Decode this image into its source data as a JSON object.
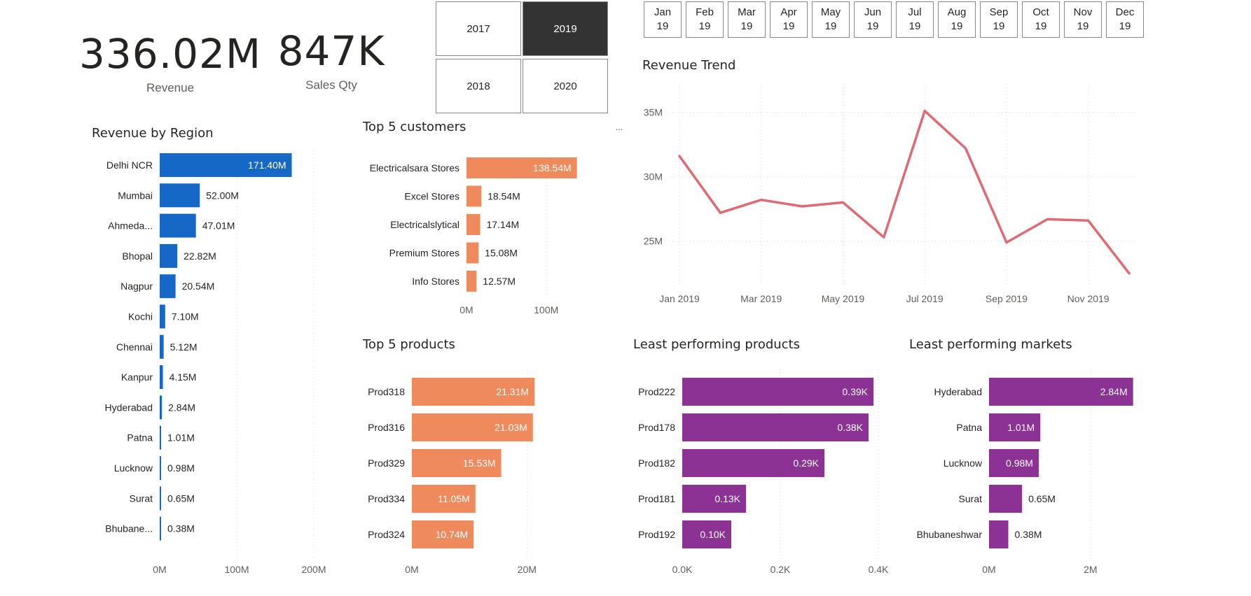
{
  "kpis": {
    "revenue": {
      "value": "336.02M",
      "label": "Revenue"
    },
    "sales_qty": {
      "value": "847K",
      "label": "Sales Qty"
    }
  },
  "year_slicer": {
    "items": [
      {
        "label": "2017",
        "selected": false
      },
      {
        "label": "2019",
        "selected": true
      },
      {
        "label": "2018",
        "selected": false
      },
      {
        "label": "2020",
        "selected": false
      }
    ]
  },
  "month_slicer": {
    "items": [
      {
        "month": "Jan",
        "year": "19"
      },
      {
        "month": "Feb",
        "year": "19"
      },
      {
        "month": "Mar",
        "year": "19"
      },
      {
        "month": "Apr",
        "year": "19"
      },
      {
        "month": "May",
        "year": "19"
      },
      {
        "month": "Jun",
        "year": "19"
      },
      {
        "month": "Jul",
        "year": "19"
      },
      {
        "month": "Aug",
        "year": "19"
      },
      {
        "month": "Sep",
        "year": "19"
      },
      {
        "month": "Oct",
        "year": "19"
      },
      {
        "month": "Nov",
        "year": "19"
      },
      {
        "month": "Dec",
        "year": "19"
      }
    ]
  },
  "more_options_glyph": "...",
  "colors": {
    "region_bar": "#1568c6",
    "customer_bar": "#ef8a5c",
    "product_bar": "#ef8a5c",
    "least_bar": "#8b3294",
    "trend_line": "#de6a73",
    "grid": "#d9d9d9",
    "axis_text": "#605e5c"
  },
  "chart_data": [
    {
      "id": "region",
      "type": "bar",
      "orientation": "horizontal",
      "title": "Revenue by Region",
      "categories": [
        "Delhi NCR",
        "Mumbai",
        "Ahmeda...",
        "Bhopal",
        "Nagpur",
        "Kochi",
        "Chennai",
        "Kanpur",
        "Hyderabad",
        "Patna",
        "Lucknow",
        "Surat",
        "Bhubane..."
      ],
      "values": [
        171.4,
        52.0,
        47.01,
        22.82,
        20.54,
        7.1,
        5.12,
        4.15,
        2.84,
        1.01,
        0.98,
        0.65,
        0.38
      ],
      "data_labels": [
        "171.40M",
        "52.00M",
        "47.01M",
        "22.82M",
        "20.54M",
        "7.10M",
        "5.12M",
        "4.15M",
        "2.84M",
        "1.01M",
        "0.98M",
        "0.65M",
        "0.38M"
      ],
      "unit": "M",
      "xlim": [
        0,
        200
      ],
      "xticks": [
        0,
        100,
        200
      ],
      "xtick_labels": [
        "0M",
        "100M",
        "200M"
      ],
      "grid": true
    },
    {
      "id": "customers",
      "type": "bar",
      "orientation": "horizontal",
      "title": "Top 5 customers",
      "categories": [
        "Electricalsara Stores",
        "Excel Stores",
        "Electricalslytical",
        "Premium Stores",
        "Info Stores"
      ],
      "values": [
        138.54,
        18.54,
        17.14,
        15.08,
        12.57
      ],
      "data_labels": [
        "138.54M",
        "18.54M",
        "17.14M",
        "15.08M",
        "12.57M"
      ],
      "unit": "M",
      "xlim": [
        0,
        145
      ],
      "xticks": [
        0,
        100
      ],
      "xtick_labels": [
        "0M",
        "100M"
      ],
      "grid": true
    },
    {
      "id": "trend",
      "type": "line",
      "title": "Revenue Trend",
      "x": [
        "Jan 2019",
        "Feb 2019",
        "Mar 2019",
        "Apr 2019",
        "May 2019",
        "Jun 2019",
        "Jul 2019",
        "Aug 2019",
        "Sep 2019",
        "Oct 2019",
        "Nov 2019",
        "Dec 2019"
      ],
      "values": [
        31.6,
        27.2,
        28.2,
        27.7,
        28.0,
        25.3,
        35.1,
        32.2,
        24.9,
        26.7,
        26.6,
        22.5
      ],
      "unit": "M",
      "ylim": [
        22,
        36
      ],
      "yticks": [
        25,
        30,
        35
      ],
      "ytick_labels": [
        "25M",
        "30M",
        "35M"
      ],
      "xtick_indices": [
        0,
        2,
        4,
        6,
        8,
        10
      ],
      "xtick_labels": [
        "Jan 2019",
        "Mar 2019",
        "May 2019",
        "Jul 2019",
        "Sep 2019",
        "Nov 2019"
      ],
      "grid": true
    },
    {
      "id": "products",
      "type": "bar",
      "orientation": "horizontal",
      "title": "Top 5 products",
      "categories": [
        "Prod318",
        "Prod316",
        "Prod329",
        "Prod334",
        "Prod324"
      ],
      "values": [
        21.31,
        21.03,
        15.53,
        11.05,
        10.74
      ],
      "data_labels": [
        "21.31M",
        "21.03M",
        "15.53M",
        "11.05M",
        "10.74M"
      ],
      "unit": "M",
      "xlim": [
        0,
        28
      ],
      "xticks": [
        0,
        20
      ],
      "xtick_labels": [
        "0M",
        "20M"
      ],
      "grid": true
    },
    {
      "id": "least_products",
      "type": "bar",
      "orientation": "horizontal",
      "title": "Least performing products",
      "categories": [
        "Prod222",
        "Prod178",
        "Prod182",
        "Prod181",
        "Prod192"
      ],
      "values": [
        0.39,
        0.38,
        0.29,
        0.13,
        0.1
      ],
      "data_labels": [
        "0.39K",
        "0.38K",
        "0.29K",
        "0.13K",
        "0.10K"
      ],
      "unit": "K",
      "xlim": [
        0,
        0.4
      ],
      "xticks": [
        0,
        0.2,
        0.4
      ],
      "xtick_labels": [
        "0.0K",
        "0.2K",
        "0.4K"
      ],
      "grid": true
    },
    {
      "id": "least_markets",
      "type": "bar",
      "orientation": "horizontal",
      "title": "Least performing markets",
      "categories": [
        "Hyderabad",
        "Patna",
        "Lucknow",
        "Surat",
        "Bhubaneshwar"
      ],
      "values": [
        2.84,
        1.01,
        0.98,
        0.65,
        0.38
      ],
      "data_labels": [
        "2.84M",
        "1.01M",
        "0.98M",
        "0.65M",
        "0.38M"
      ],
      "unit": "M",
      "xlim": [
        0,
        2.9
      ],
      "xticks": [
        0,
        2
      ],
      "xtick_labels": [
        "0M",
        "2M"
      ],
      "grid": true
    }
  ]
}
